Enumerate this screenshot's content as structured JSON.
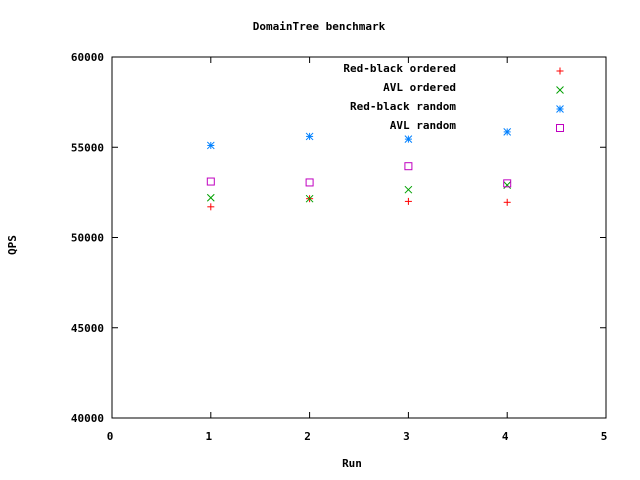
{
  "chart_data": {
    "type": "scatter",
    "title": "DomainTree benchmark",
    "xlabel": "Run",
    "ylabel": "QPS",
    "xlim": [
      0,
      5
    ],
    "ylim": [
      40000,
      60000
    ],
    "xticks": [
      0,
      1,
      2,
      3,
      4,
      5
    ],
    "yticks": [
      40000,
      45000,
      50000,
      55000,
      60000
    ],
    "xtick_labels": [
      "0",
      "1",
      "2",
      "3",
      "4",
      "5"
    ],
    "ytick_labels": [
      "40000",
      "45000",
      "50000",
      "55000",
      "60000"
    ],
    "grid": false,
    "legend_position": "top-right",
    "series": [
      {
        "name": "Red-black ordered",
        "marker": "plus",
        "color": "#ff0000",
        "x": [
          1,
          2,
          3,
          4
        ],
        "y": [
          51700,
          52150,
          52000,
          51950
        ]
      },
      {
        "name": "AVL ordered",
        "marker": "cross",
        "color": "#00a000",
        "x": [
          1,
          2,
          3,
          4
        ],
        "y": [
          52200,
          52150,
          52650,
          52900
        ]
      },
      {
        "name": "Red-black random",
        "marker": "star",
        "color": "#0080ff",
        "x": [
          1,
          2,
          3,
          4
        ],
        "y": [
          55100,
          55600,
          55450,
          55850
        ]
      },
      {
        "name": "AVL random",
        "marker": "square",
        "color": "#c000c0",
        "x": [
          1,
          2,
          3,
          4
        ],
        "y": [
          53100,
          53050,
          53950,
          53000
        ]
      }
    ]
  }
}
